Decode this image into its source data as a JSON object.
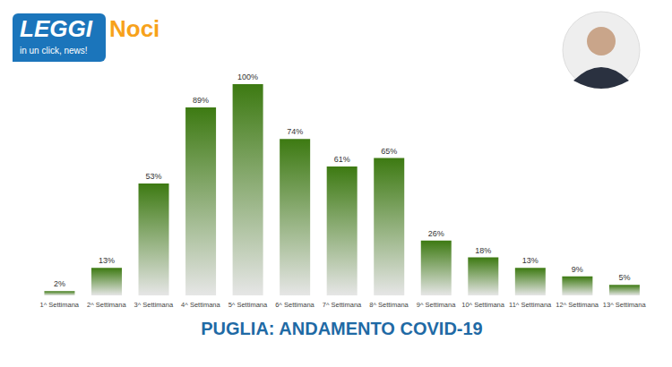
{
  "chart_data": {
    "type": "bar",
    "title": "PUGLIA: ANDAMENTO COVID-19",
    "categories": [
      "1^ Settimana",
      "2^ Settimana",
      "3^ Settimana",
      "4^ Settimana",
      "5^ Settimana",
      "6^ Settimana",
      "7^ Settimana",
      "8^ Settimana",
      "9^ Settimana",
      "10^ Settimana",
      "11^ Settimana",
      "12^ Settimana",
      "13^ Settimana"
    ],
    "values": [
      2,
      13,
      53,
      89,
      100,
      74,
      61,
      65,
      26,
      18,
      13,
      9,
      5
    ],
    "value_labels": [
      "2%",
      "13%",
      "53%",
      "89%",
      "100%",
      "74%",
      "61%",
      "65%",
      "26%",
      "18%",
      "13%",
      "9%",
      "5%"
    ],
    "color": "#3d7a12",
    "ylim": [
      0,
      100
    ],
    "data_labels": true,
    "tick_labels": "x",
    "grid": false
  },
  "logo": {
    "title": "LEGGI",
    "name": "Noci",
    "tagline": "in un click, news!"
  }
}
